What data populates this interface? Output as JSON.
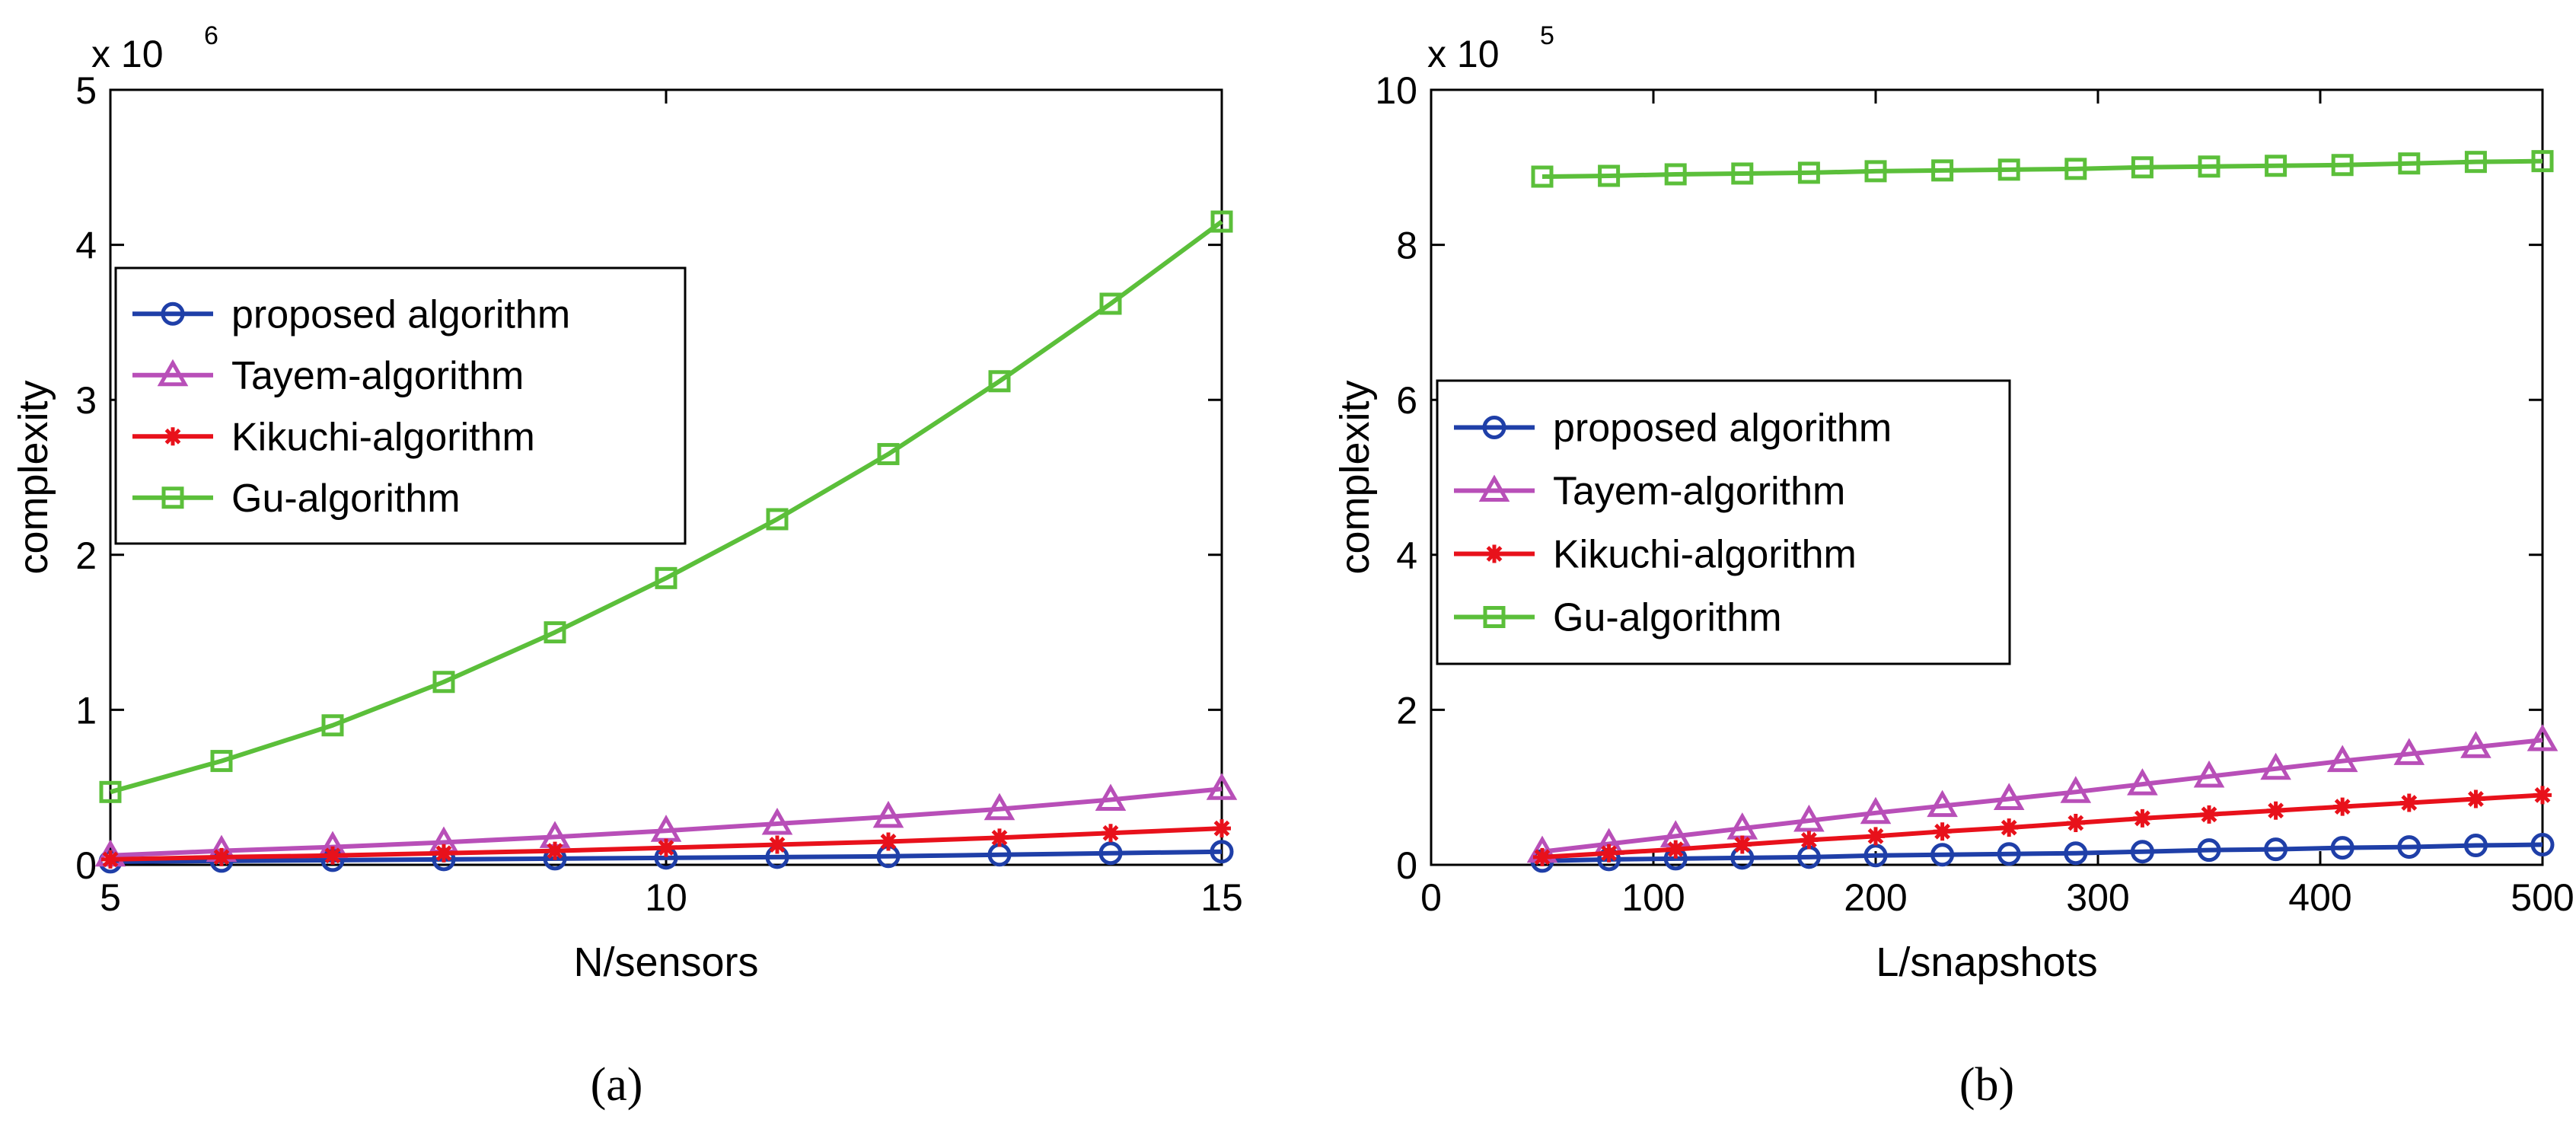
{
  "chart_data": [
    {
      "type": "line",
      "panel": "a",
      "caption": "(a)",
      "xlabel": "N/sensors",
      "ylabel": "complexity",
      "exponent_base": "x 10",
      "exponent_power": "6",
      "xlim": [
        5,
        15
      ],
      "ylim": [
        0,
        5
      ],
      "xticks": [
        5,
        10,
        15
      ],
      "yticks": [
        0,
        1,
        2,
        3,
        4,
        5
      ],
      "xtick_labels": [
        "5",
        "10",
        "15"
      ],
      "ytick_labels": [
        "0",
        "1",
        "2",
        "3",
        "4",
        "5"
      ],
      "legend_position": "upper-left",
      "x": [
        5,
        6,
        7,
        8,
        9,
        10,
        11,
        12,
        13,
        14,
        15
      ],
      "series": [
        {
          "name": "proposed algorithm",
          "color": "#1f3fa8",
          "marker": "circle",
          "values": [
            0.02,
            0.025,
            0.03,
            0.035,
            0.04,
            0.045,
            0.05,
            0.055,
            0.065,
            0.075,
            0.085
          ]
        },
        {
          "name": "Tayem-algorithm",
          "color": "#b84fb8",
          "marker": "triangle",
          "values": [
            0.06,
            0.09,
            0.115,
            0.145,
            0.18,
            0.22,
            0.265,
            0.31,
            0.36,
            0.42,
            0.49
          ]
        },
        {
          "name": "Kikuchi-algorithm",
          "color": "#e8111b",
          "marker": "star",
          "values": [
            0.035,
            0.05,
            0.06,
            0.075,
            0.09,
            0.11,
            0.13,
            0.15,
            0.175,
            0.205,
            0.235
          ]
        },
        {
          "name": "Gu-algorithm",
          "color": "#5bbf3a",
          "marker": "square",
          "values": [
            0.47,
            0.67,
            0.9,
            1.18,
            1.5,
            1.85,
            2.23,
            2.65,
            3.12,
            3.62,
            4.15
          ]
        }
      ]
    },
    {
      "type": "line",
      "panel": "b",
      "caption": "(b)",
      "xlabel": "L/snapshots",
      "ylabel": "complexity",
      "exponent_base": "x 10",
      "exponent_power": "5",
      "xlim": [
        0,
        500
      ],
      "ylim": [
        0,
        10
      ],
      "xticks": [
        0,
        100,
        200,
        300,
        400,
        500
      ],
      "yticks": [
        0,
        2,
        4,
        6,
        8,
        10
      ],
      "xtick_labels": [
        "0",
        "100",
        "200",
        "300",
        "400",
        "500"
      ],
      "ytick_labels": [
        "0",
        "2",
        "4",
        "6",
        "8",
        "10"
      ],
      "legend_position": "center-left",
      "x": [
        50,
        80,
        110,
        140,
        170,
        200,
        230,
        260,
        290,
        320,
        350,
        380,
        410,
        440,
        470,
        500
      ],
      "series": [
        {
          "name": "proposed algorithm",
          "color": "#1f3fa8",
          "marker": "circle",
          "values": [
            0.05,
            0.07,
            0.08,
            0.09,
            0.1,
            0.12,
            0.13,
            0.14,
            0.15,
            0.17,
            0.19,
            0.2,
            0.22,
            0.23,
            0.25,
            0.26
          ]
        },
        {
          "name": "Tayem-algorithm",
          "color": "#b84fb8",
          "marker": "triangle",
          "values": [
            0.17,
            0.27,
            0.37,
            0.47,
            0.57,
            0.67,
            0.76,
            0.85,
            0.94,
            1.04,
            1.14,
            1.24,
            1.34,
            1.43,
            1.52,
            1.61
          ]
        },
        {
          "name": "Kikuchi-algorithm",
          "color": "#e8111b",
          "marker": "star",
          "values": [
            0.1,
            0.15,
            0.2,
            0.26,
            0.32,
            0.37,
            0.43,
            0.48,
            0.54,
            0.6,
            0.65,
            0.7,
            0.75,
            0.8,
            0.85,
            0.9
          ]
        },
        {
          "name": "Gu-algorithm",
          "color": "#5bbf3a",
          "marker": "square",
          "values": [
            8.88,
            8.89,
            8.91,
            8.92,
            8.93,
            8.95,
            8.96,
            8.97,
            8.98,
            9.0,
            9.01,
            9.02,
            9.03,
            9.05,
            9.07,
            9.08
          ]
        }
      ]
    }
  ]
}
